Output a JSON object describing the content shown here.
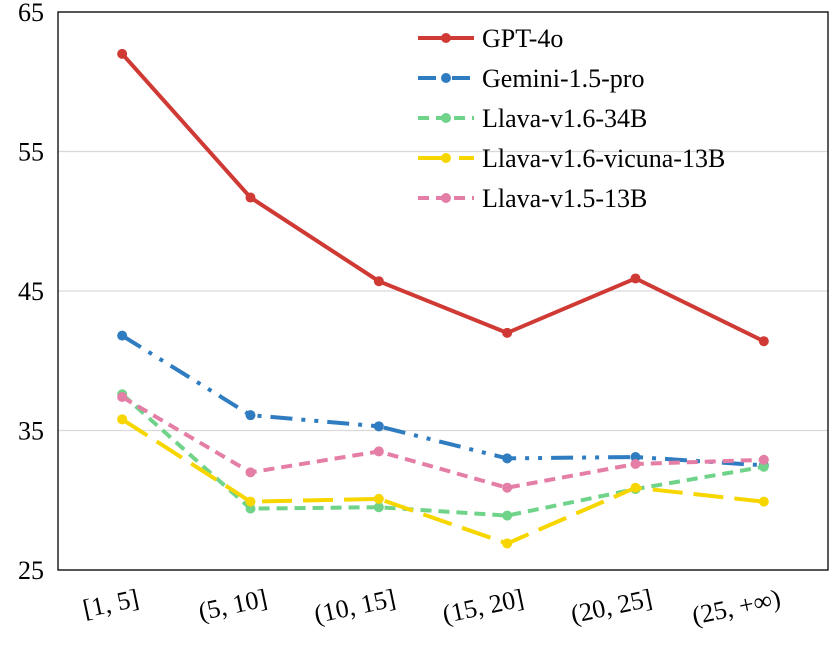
{
  "chart_data": {
    "type": "line",
    "title": "",
    "xlabel": "",
    "ylabel": "",
    "categories": [
      "[1, 5]",
      "(5, 10]",
      "(10, 15]",
      "(15, 20]",
      "(20, 25]",
      "(25, +∞)"
    ],
    "ylim": [
      25,
      65
    ],
    "yticks": [
      "25",
      "35",
      "45",
      "55",
      "65"
    ],
    "grid": "horizontal",
    "legend_position": "top-right",
    "series": [
      {
        "name": "GPT-4o",
        "color": "#d03a35",
        "dash": "solid",
        "values": [
          62.0,
          51.7,
          45.7,
          42.0,
          45.9,
          41.4
        ]
      },
      {
        "name": "Gemini-1.5-pro",
        "color": "#2f7cc0",
        "dash": "dashdot",
        "values": [
          41.8,
          36.1,
          35.3,
          33.0,
          33.1,
          32.5
        ]
      },
      {
        "name": "Llava-v1.6-34B",
        "color": "#6fd38a",
        "dash": "short",
        "values": [
          37.6,
          29.4,
          29.5,
          28.9,
          30.8,
          32.4
        ]
      },
      {
        "name": "Llava-v1.6-vicuna-13B",
        "color": "#f7d600",
        "dash": "long",
        "values": [
          35.8,
          29.9,
          30.1,
          26.9,
          30.9,
          29.9
        ]
      },
      {
        "name": "Llava-v1.5-13B",
        "color": "#e47ea6",
        "dash": "short",
        "values": [
          37.4,
          32.0,
          33.5,
          30.9,
          32.6,
          32.9
        ]
      }
    ]
  }
}
